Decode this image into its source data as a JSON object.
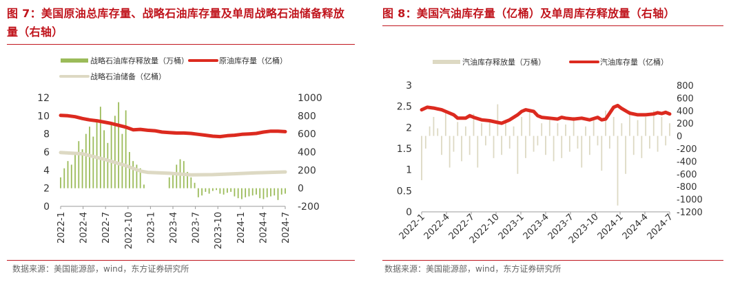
{
  "panels": [
    {
      "title": "图 7：美国原油总库存量、战略石油库存量及单周战略石油储备释放量（右轴）",
      "source": "数据来源：美国能源部，wind，东方证券研究所"
    },
    {
      "title": "图 8：美国汽油库存量（亿桶）及单周库存释放量（右轴）",
      "source": "数据来源：美国能源部，wind，东方证券研究所"
    }
  ],
  "colors": {
    "accent": "#c0141c",
    "line": "#dc2a1f",
    "bar_green": "#9bbb59",
    "beige": "#ddd9c3"
  },
  "chart_data": [
    {
      "type": "bar",
      "legend": [
        "战略石油库存释放量（万桶）",
        "原油库存量（亿桶）",
        "战略石油储备（亿桶）"
      ],
      "legend_placement": "top",
      "x_ticks": [
        "2022-1",
        "2022-4",
        "2022-7",
        "2022-10",
        "2023-1",
        "2023-4",
        "2023-7",
        "2023-10",
        "2024-1",
        "2024-4",
        "2024-7"
      ],
      "y_left": {
        "ticks": [
          "0",
          "2",
          "4",
          "6",
          "8",
          "10",
          "12"
        ],
        "range": [
          0,
          12
        ]
      },
      "y_right": {
        "ticks": [
          "-200",
          "0",
          "200",
          "400",
          "600",
          "800",
          "1000"
        ],
        "range": [
          -200,
          1000
        ]
      },
      "grid": false,
      "series": [
        {
          "name": "原油库存量（亿桶）",
          "axis": "left",
          "type": "line",
          "x": [
            0,
            1,
            2,
            3,
            4,
            5,
            6,
            7,
            8,
            9,
            10,
            11,
            12,
            13,
            14,
            15,
            16,
            17,
            18,
            19,
            20,
            21,
            22,
            23,
            24,
            25,
            26,
            27,
            28,
            29,
            30,
            31
          ],
          "values": [
            10.05,
            10.0,
            9.9,
            9.7,
            9.55,
            9.45,
            9.3,
            9.15,
            8.95,
            8.75,
            8.45,
            8.5,
            8.4,
            8.35,
            8.2,
            8.15,
            8.1,
            8.1,
            8.05,
            7.95,
            7.85,
            7.75,
            7.7,
            7.8,
            7.85,
            7.95,
            8.0,
            8.05,
            8.2,
            8.3,
            8.3,
            8.25
          ]
        },
        {
          "name": "战略石油储备（亿桶）",
          "axis": "left",
          "type": "line",
          "x": [
            0,
            3,
            6,
            9,
            11,
            12,
            15,
            18,
            21,
            24,
            27,
            31
          ],
          "values": [
            5.95,
            5.8,
            5.2,
            4.5,
            3.9,
            3.75,
            3.65,
            3.47,
            3.5,
            3.6,
            3.7,
            3.8
          ]
        },
        {
          "name": "战略石油库存释放量（万桶）",
          "axis": "right",
          "type": "bar",
          "x": [
            0,
            0.5,
            1,
            1.5,
            2,
            2.5,
            3,
            3.5,
            4,
            4.5,
            5,
            5.5,
            6,
            6.5,
            7,
            7.5,
            8,
            8.5,
            9,
            9.5,
            10,
            10.5,
            11,
            11.5,
            15,
            15.5,
            16,
            16.5,
            17,
            17.5,
            18,
            18.5,
            19,
            19.5,
            20,
            20.5,
            21,
            21.5,
            22,
            22.5,
            23,
            23.5,
            24,
            24.5,
            25,
            25.5,
            26,
            26.5,
            27,
            27.5,
            28,
            28.5,
            29,
            29.5,
            30,
            30.5,
            31
          ],
          "values": [
            120,
            220,
            300,
            260,
            390,
            520,
            430,
            600,
            680,
            570,
            760,
            900,
            640,
            500,
            720,
            800,
            950,
            600,
            860,
            400,
            300,
            260,
            220,
            40,
            120,
            160,
            260,
            320,
            300,
            180,
            120,
            60,
            -100,
            -80,
            -40,
            -60,
            -30,
            -20,
            -60,
            -70,
            -50,
            -40,
            -90,
            -110,
            -120,
            -100,
            -90,
            -80,
            -70,
            -110,
            -120,
            -100,
            -90,
            -80,
            -130,
            -70,
            -60
          ]
        }
      ]
    },
    {
      "type": "bar",
      "legend": [
        "汽油库存释放量（万桶）",
        "汽油库存量（亿桶）"
      ],
      "legend_placement": "top",
      "x_ticks": [
        "2022-1",
        "2022-4",
        "2022-7",
        "2022-10",
        "2023-1",
        "2023-4",
        "2023-7",
        "2023-10",
        "2024-1",
        "2024-4",
        "2024-7"
      ],
      "y_left": {
        "ticks": [
          "0",
          "0.5",
          "1",
          "1.5",
          "2",
          "2.5",
          "3"
        ],
        "range": [
          0,
          3
        ]
      },
      "y_right": {
        "ticks": [
          "-1200",
          "-1000",
          "-800",
          "-600",
          "-400",
          "-200",
          "0",
          "200",
          "400",
          "600",
          "800"
        ],
        "range": [
          -1200,
          800
        ]
      },
      "grid": false,
      "series": [
        {
          "name": "汽油库存量（亿桶）",
          "axis": "left",
          "type": "line",
          "x": [
            0,
            0.7,
            1.5,
            2.5,
            3,
            4,
            4.5,
            5.5,
            6,
            6.5,
            7.5,
            8,
            8.5,
            9.5,
            10,
            11,
            12,
            12.5,
            13,
            14,
            14.5,
            15,
            16,
            17,
            17.5,
            18,
            19,
            20,
            21,
            22,
            22.5,
            23,
            24,
            24.5,
            25,
            26,
            27,
            28,
            29,
            29.5,
            30,
            30.5,
            31
          ],
          "values": [
            2.42,
            2.48,
            2.46,
            2.42,
            2.38,
            2.3,
            2.22,
            2.22,
            2.28,
            2.24,
            2.18,
            2.17,
            2.16,
            2.12,
            2.1,
            2.18,
            2.3,
            2.38,
            2.42,
            2.38,
            2.28,
            2.24,
            2.22,
            2.2,
            2.24,
            2.22,
            2.2,
            2.22,
            2.18,
            2.24,
            2.18,
            2.2,
            2.48,
            2.52,
            2.45,
            2.34,
            2.3,
            2.3,
            2.32,
            2.35,
            2.33,
            2.36,
            2.32
          ]
        },
        {
          "name": "汽油库存释放量（万桶）",
          "axis": "right",
          "type": "bar",
          "x": [
            0,
            0.5,
            1,
            1.5,
            2,
            2.5,
            3,
            3.5,
            4,
            4.5,
            5,
            5.5,
            6,
            6.5,
            7,
            7.5,
            8,
            8.5,
            9,
            9.5,
            10,
            10.5,
            11,
            11.5,
            12,
            12.5,
            13,
            13.5,
            14,
            14.5,
            15,
            15.5,
            16,
            16.5,
            17,
            17.5,
            18,
            18.5,
            19,
            19.5,
            20,
            20.5,
            21,
            21.5,
            22,
            22.5,
            23,
            23.5,
            24,
            24.5,
            25,
            25.5,
            26,
            26.5,
            27,
            27.5,
            28,
            28.5,
            29,
            29.5,
            30,
            30.5,
            31
          ],
          "values": [
            -700,
            -200,
            150,
            300,
            120,
            -300,
            400,
            -500,
            -250,
            220,
            -400,
            150,
            -300,
            350,
            -500,
            200,
            -150,
            250,
            -350,
            500,
            -300,
            200,
            -200,
            150,
            -600,
            300,
            -350,
            400,
            -250,
            -150,
            200,
            -300,
            250,
            -400,
            200,
            -350,
            180,
            -250,
            300,
            -200,
            -500,
            150,
            -300,
            250,
            -150,
            -550,
            400,
            -200,
            300,
            -1100,
            200,
            -600,
            400,
            -300,
            250,
            -350,
            300,
            -200,
            400,
            -250,
            300,
            -150,
            200
          ]
        }
      ]
    }
  ]
}
